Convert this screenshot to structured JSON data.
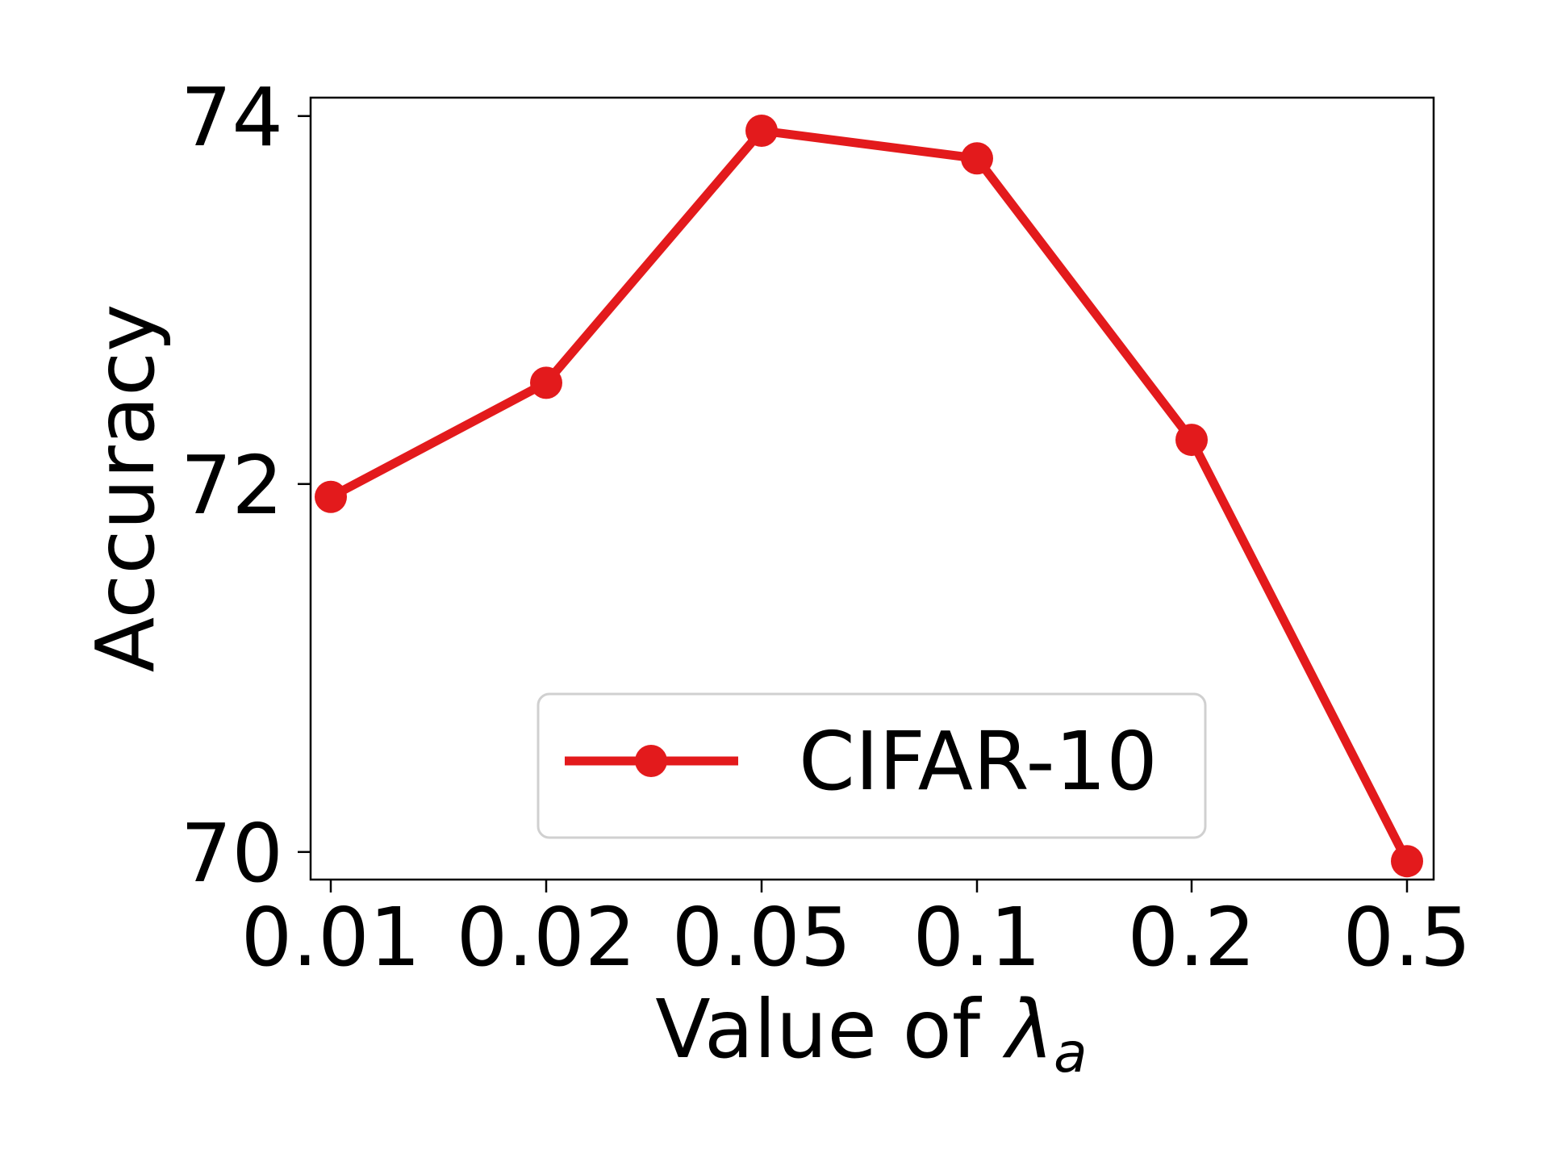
{
  "chart_data": {
    "type": "line",
    "title": "",
    "categories": [
      "0.01",
      "0.02",
      "0.05",
      "0.1",
      "0.2",
      "0.5"
    ],
    "series": [
      {
        "name": "CIFAR-10",
        "values": [
          71.93,
          72.55,
          73.92,
          73.77,
          72.24,
          69.95
        ],
        "color": "#e31a1c",
        "marker": "circle"
      }
    ],
    "xlabel": "Value of λa",
    "xlabel_main": "Value of ",
    "xlabel_symbol": "λ",
    "xlabel_subscript": "a",
    "ylabel": "Accuracy",
    "ylim": [
      69.85,
      74.1
    ],
    "yticks": [
      "70",
      "72",
      "74"
    ],
    "grid": false,
    "legend": {
      "placement": "lower-center"
    }
  }
}
